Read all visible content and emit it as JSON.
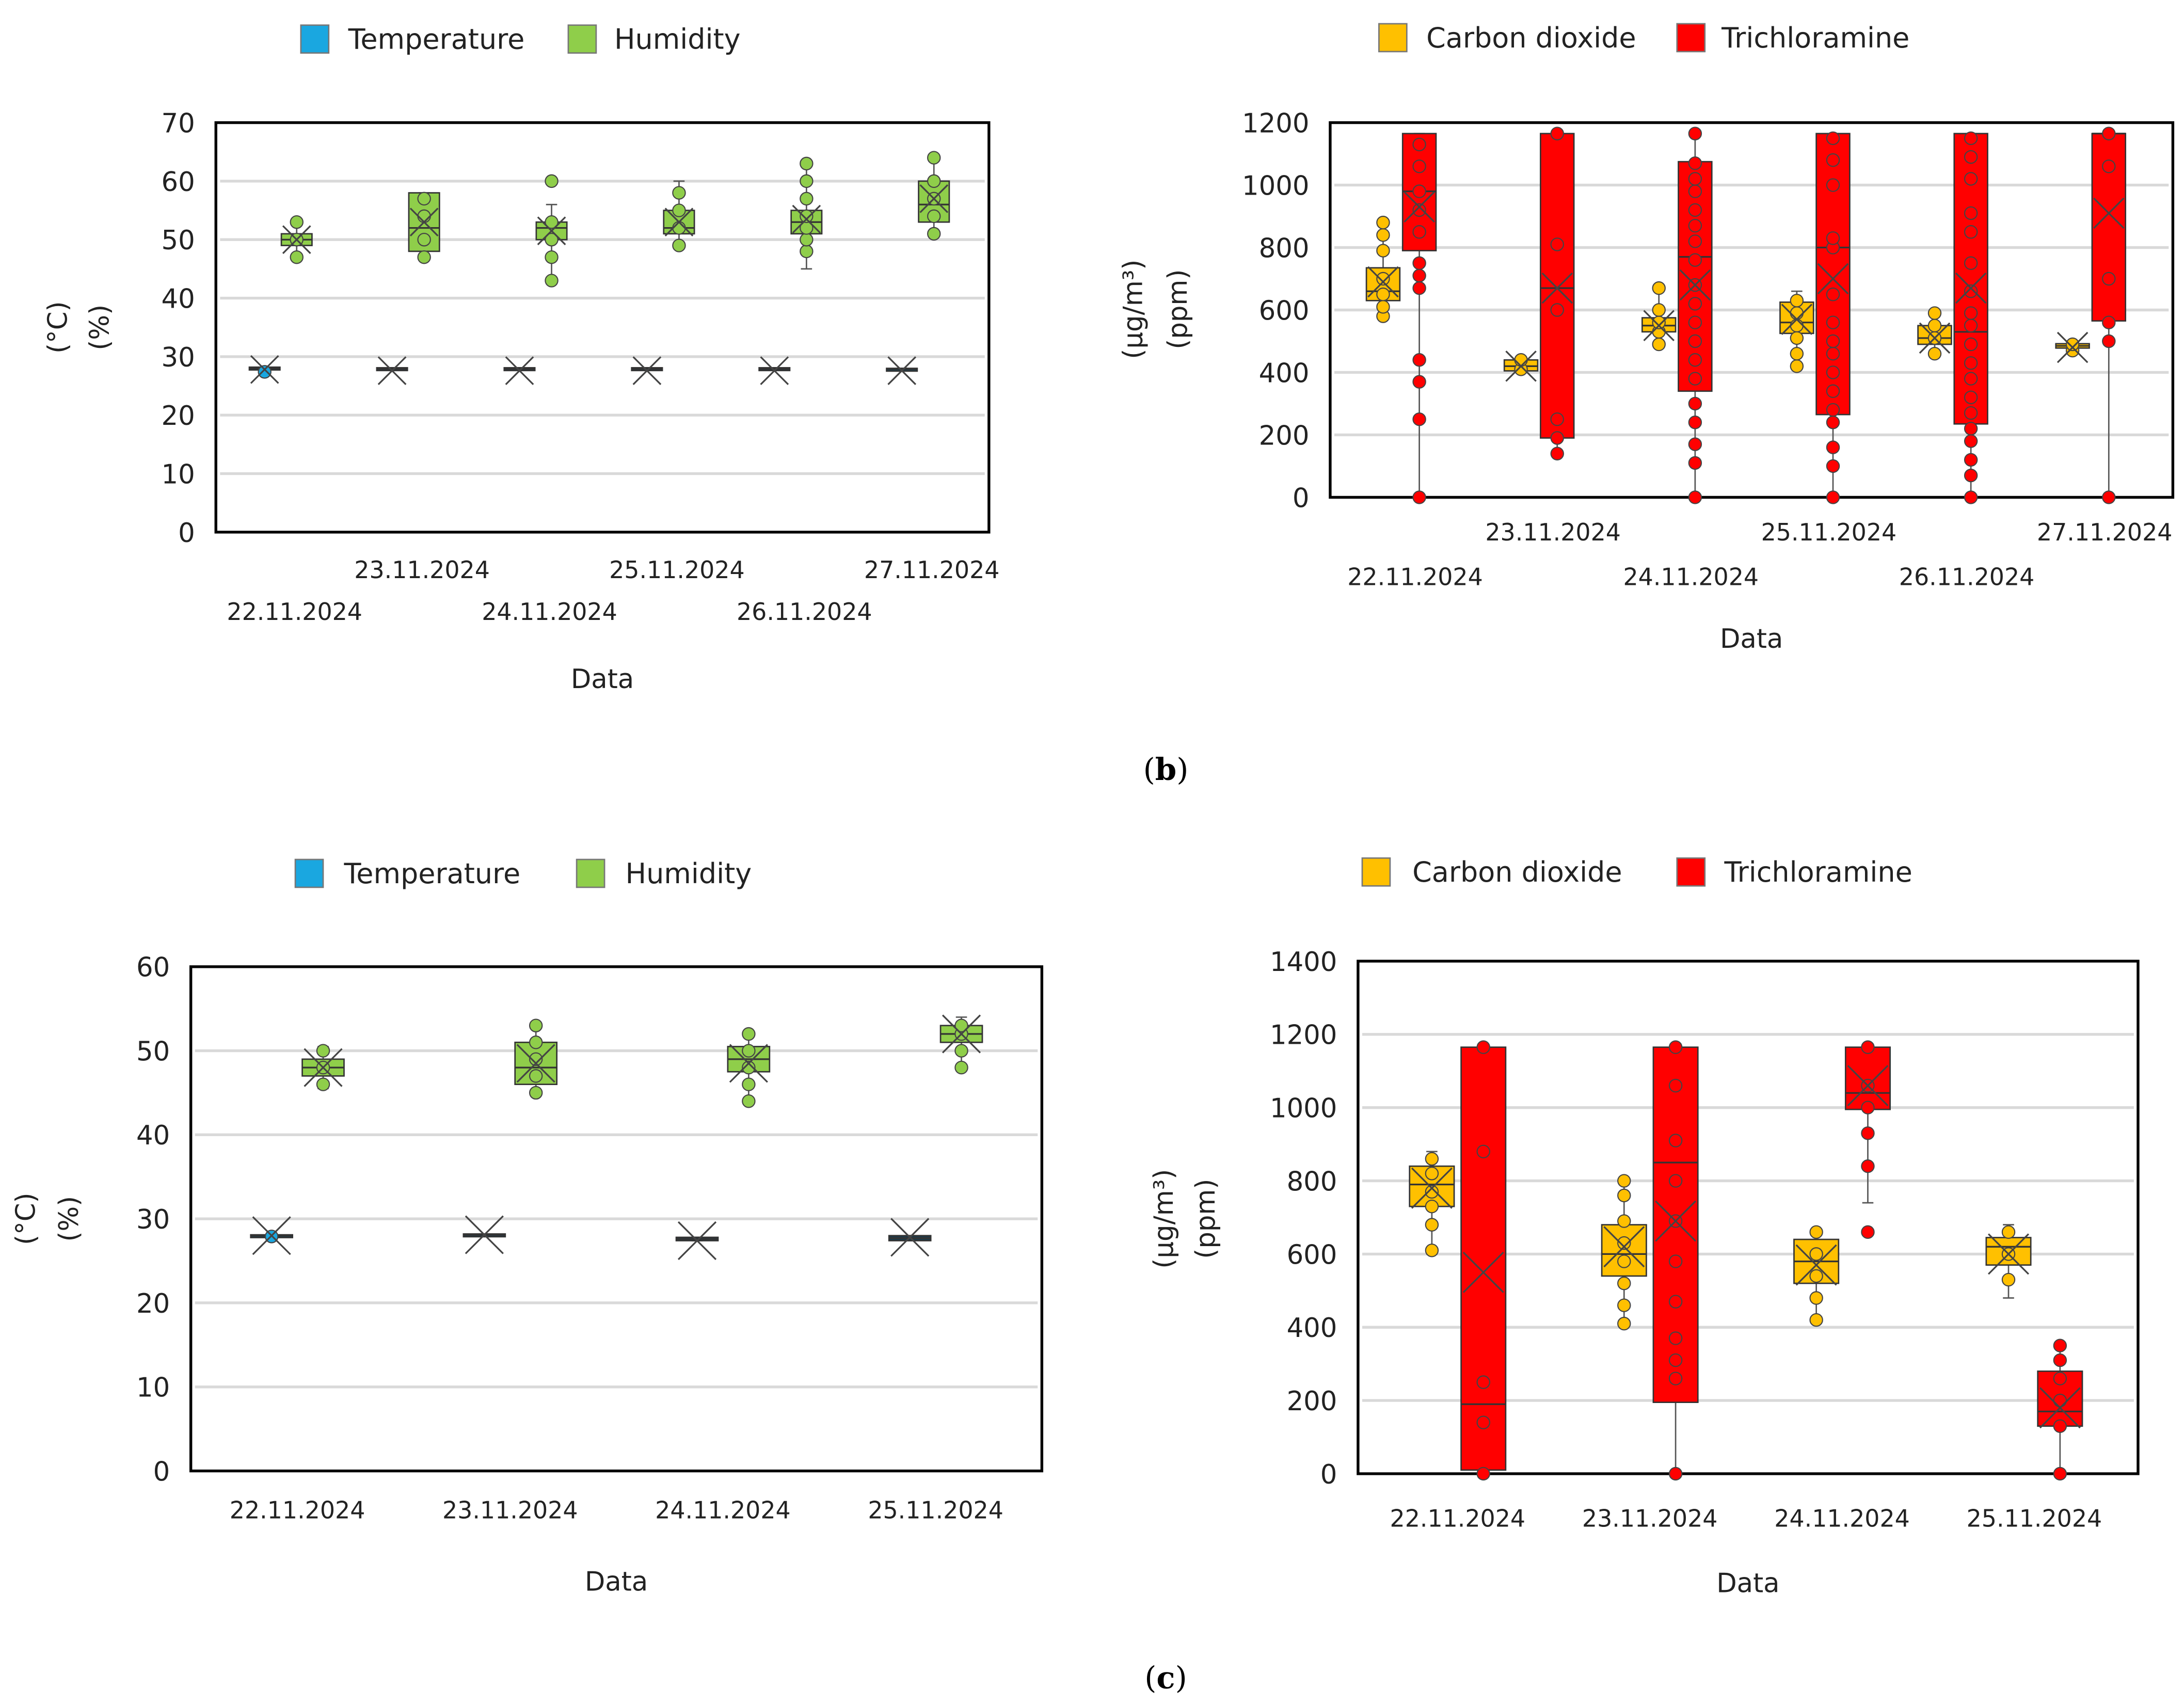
{
  "captions": {
    "b": "b",
    "c": "c"
  },
  "colors": {
    "temperature": "#1aa7e0",
    "humidity": "#8fce4a",
    "co2": "#ffc000",
    "tca": "#ff0000"
  },
  "chart_data": [
    {
      "type": "box",
      "panel": "b-left",
      "legend": [
        "Temperature",
        "Humidity"
      ],
      "legend_placement": "top-center",
      "ylabel": [
        "(°C)",
        "(%)"
      ],
      "xlabel": "Data",
      "ylim": [
        0,
        70
      ],
      "yticks": [
        "0",
        "10",
        "20",
        "30",
        "40",
        "50",
        "60",
        "70"
      ],
      "categories": [
        "22.11.2024",
        "23.11.2024",
        "24.11.2024",
        "25.11.2024",
        "26.11.2024",
        "27.11.2024"
      ],
      "series": [
        {
          "name": "Temperature",
          "boxes": [
            {
              "q1": 27.8,
              "median": 28,
              "q3": 28.2,
              "min": 27.8,
              "max": 28.2,
              "mean": 27.8,
              "points": [
                27.4
              ]
            },
            {
              "q1": 27.7,
              "median": 27.9,
              "q3": 28.1,
              "min": 27.7,
              "max": 28.1,
              "mean": 27.6,
              "points": []
            },
            {
              "q1": 27.7,
              "median": 27.9,
              "q3": 28.1,
              "min": 27.7,
              "max": 28.1,
              "mean": 27.6,
              "points": []
            },
            {
              "q1": 27.7,
              "median": 27.9,
              "q3": 28.1,
              "min": 27.7,
              "max": 28.1,
              "mean": 27.6,
              "points": []
            },
            {
              "q1": 27.7,
              "median": 27.9,
              "q3": 28.1,
              "min": 27.7,
              "max": 28.1,
              "mean": 27.6,
              "points": []
            },
            {
              "q1": 27.8,
              "median": 27.9,
              "q3": 28,
              "min": 27.8,
              "max": 28,
              "mean": 27.6,
              "points": []
            }
          ]
        },
        {
          "name": "Humidity",
          "boxes": [
            {
              "q1": 49,
              "median": 50,
              "q3": 51,
              "min": 47,
              "max": 53,
              "mean": 50,
              "points": [
                47,
                50,
                53
              ]
            },
            {
              "q1": 48,
              "median": 52,
              "q3": 58,
              "min": 47,
              "max": 58,
              "mean": 53,
              "points": [
                47,
                50,
                54,
                57
              ]
            },
            {
              "q1": 50,
              "median": 52,
              "q3": 53,
              "min": 43,
              "max": 56,
              "mean": 51.5,
              "points": [
                43,
                47,
                50,
                53,
                60
              ]
            },
            {
              "q1": 51,
              "median": 52,
              "q3": 55,
              "min": 49,
              "max": 60,
              "mean": 53,
              "points": [
                49,
                52,
                55,
                58
              ]
            },
            {
              "q1": 51,
              "median": 53,
              "q3": 55,
              "min": 45,
              "max": 63,
              "mean": 53.5,
              "points": [
                48,
                50,
                52,
                54,
                57,
                60,
                63
              ]
            },
            {
              "q1": 53,
              "median": 56,
              "q3": 60,
              "min": 51,
              "max": 64,
              "mean": 57,
              "points": [
                51,
                54,
                57,
                60,
                64
              ]
            }
          ]
        }
      ]
    },
    {
      "type": "box",
      "panel": "b-right",
      "legend": [
        "Carbon dioxide",
        "Trichloramine"
      ],
      "legend_placement": "top-center",
      "ylabel": [
        "(µg/m³)",
        "(ppm)"
      ],
      "xlabel": "Data",
      "ylim": [
        0,
        1200
      ],
      "yticks": [
        "0",
        "200",
        "400",
        "600",
        "800",
        "1000",
        "1200"
      ],
      "categories": [
        "22.11.2024",
        "23.11.2024",
        "24.11.2024",
        "25.11.2024",
        "26.11.2024",
        "27.11.2024"
      ],
      "series": [
        {
          "name": "Carbon dioxide",
          "boxes": [
            {
              "q1": 630,
              "median": 660,
              "q3": 735,
              "min": 580,
              "max": 880,
              "mean": 690,
              "points": [
                580,
                610,
                650,
                700,
                790,
                840,
                880
              ]
            },
            {
              "q1": 405,
              "median": 420,
              "q3": 440,
              "min": 400,
              "max": 450,
              "mean": 420,
              "points": [
                410,
                440
              ]
            },
            {
              "q1": 530,
              "median": 550,
              "q3": 575,
              "min": 480,
              "max": 670,
              "mean": 550,
              "points": [
                490,
                530,
                560,
                600,
                670
              ]
            },
            {
              "q1": 525,
              "median": 560,
              "q3": 625,
              "min": 410,
              "max": 660,
              "mean": 570,
              "points": [
                420,
                460,
                510,
                550,
                590,
                630
              ]
            },
            {
              "q1": 490,
              "median": 510,
              "q3": 550,
              "min": 450,
              "max": 590,
              "mean": 510,
              "points": [
                460,
                510,
                550,
                590
              ]
            },
            {
              "q1": 478,
              "median": 485,
              "q3": 492,
              "min": 460,
              "max": 500,
              "mean": 480,
              "points": [
                470,
                490
              ]
            }
          ]
        },
        {
          "name": "Trichloramine",
          "boxes": [
            {
              "q1": 790,
              "median": 980,
              "q3": 1165,
              "min": 0,
              "max": 1165,
              "mean": 930,
              "points": [
                0,
                250,
                370,
                440,
                670,
                710,
                750,
                850,
                920,
                980,
                1060,
                1130
              ]
            },
            {
              "q1": 190,
              "median": 670,
              "q3": 1165,
              "min": 140,
              "max": 1165,
              "mean": 670,
              "points": [
                140,
                190,
                250,
                600,
                810,
                1165
              ]
            },
            {
              "q1": 340,
              "median": 770,
              "q3": 1075,
              "min": 0,
              "max": 1165,
              "mean": 680,
              "points": [
                0,
                110,
                170,
                240,
                300,
                380,
                440,
                500,
                560,
                620,
                680,
                760,
                820,
                870,
                920,
                980,
                1020,
                1070,
                1165
              ]
            },
            {
              "q1": 265,
              "median": 800,
              "q3": 1165,
              "min": 0,
              "max": 1165,
              "mean": 700,
              "points": [
                0,
                100,
                160,
                240,
                280,
                340,
                400,
                460,
                500,
                560,
                650,
                800,
                830,
                1000,
                1080,
                1150
              ]
            },
            {
              "q1": 235,
              "median": 530,
              "q3": 1165,
              "min": 0,
              "max": 1165,
              "mean": 670,
              "points": [
                0,
                70,
                120,
                180,
                220,
                270,
                320,
                380,
                430,
                490,
                550,
                590,
                660,
                750,
                850,
                910,
                1020,
                1090,
                1150
              ]
            },
            {
              "q1": 565,
              "median": 1165,
              "q3": 1165,
              "min": 0,
              "max": 1165,
              "mean": 910,
              "points": [
                0,
                500,
                560,
                700,
                1060,
                1165
              ]
            }
          ]
        }
      ]
    },
    {
      "type": "box",
      "panel": "c-left",
      "legend": [
        "Temperature",
        "Humidity"
      ],
      "legend_placement": "top-center",
      "ylabel": [
        "(°C)",
        "(%)"
      ],
      "xlabel": "Data",
      "ylim": [
        0,
        60
      ],
      "yticks": [
        "0",
        "10",
        "20",
        "30",
        "40",
        "50",
        "60"
      ],
      "categories": [
        "22.11.2024",
        "23.11.2024",
        "24.11.2024",
        "25.11.2024"
      ],
      "series": [
        {
          "name": "Temperature",
          "boxes": [
            {
              "q1": 27.9,
              "median": 28,
              "q3": 28.1,
              "min": 27.9,
              "max": 28.1,
              "mean": 28,
              "points": [
                27.9
              ]
            },
            {
              "q1": 28,
              "median": 28.1,
              "q3": 28.2,
              "min": 28,
              "max": 28.2,
              "mean": 28.1,
              "points": []
            },
            {
              "q1": 27.4,
              "median": 27.6,
              "q3": 27.8,
              "min": 27.4,
              "max": 27.8,
              "mean": 27.4,
              "points": []
            },
            {
              "q1": 27.4,
              "median": 27.7,
              "q3": 28,
              "min": 27.4,
              "max": 28,
              "mean": 27.8,
              "points": []
            }
          ]
        },
        {
          "name": "Humidity",
          "boxes": [
            {
              "q1": 47,
              "median": 48,
              "q3": 49,
              "min": 45.5,
              "max": 50.5,
              "mean": 48,
              "points": [
                46,
                48,
                50
              ]
            },
            {
              "q1": 46,
              "median": 48,
              "q3": 51,
              "min": 45,
              "max": 53,
              "mean": 48.5,
              "points": [
                45,
                47,
                49,
                51,
                53
              ]
            },
            {
              "q1": 47.5,
              "median": 49,
              "q3": 50.5,
              "min": 44,
              "max": 52,
              "mean": 48.5,
              "points": [
                44,
                46,
                48,
                50,
                52
              ]
            },
            {
              "q1": 51,
              "median": 52,
              "q3": 53,
              "min": 48,
              "max": 54,
              "mean": 52,
              "points": [
                48,
                50,
                52,
                53
              ]
            }
          ]
        }
      ]
    },
    {
      "type": "box",
      "panel": "c-right",
      "legend": [
        "Carbon dioxide",
        "Trichloramine"
      ],
      "legend_placement": "top-center",
      "ylabel": [
        "(µg/m³)",
        "(ppm)"
      ],
      "xlabel": "Data",
      "ylim": [
        0,
        1400
      ],
      "yticks": [
        "0",
        "200",
        "400",
        "600",
        "800",
        "1000",
        "1200",
        "1400"
      ],
      "categories": [
        "22.11.2024",
        "23.11.2024",
        "24.11.2024",
        "25.11.2024"
      ],
      "series": [
        {
          "name": "Carbon dioxide",
          "boxes": [
            {
              "q1": 730,
              "median": 790,
              "q3": 840,
              "min": 600,
              "max": 880,
              "mean": 780,
              "points": [
                610,
                680,
                730,
                770,
                820,
                860
              ]
            },
            {
              "q1": 540,
              "median": 600,
              "q3": 680,
              "min": 410,
              "max": 800,
              "mean": 620,
              "points": [
                410,
                460,
                520,
                580,
                630,
                690,
                760,
                800
              ]
            },
            {
              "q1": 520,
              "median": 580,
              "q3": 640,
              "min": 420,
              "max": 660,
              "mean": 570,
              "points": [
                420,
                480,
                540,
                600,
                660
              ]
            },
            {
              "q1": 570,
              "median": 620,
              "q3": 645,
              "min": 480,
              "max": 680,
              "mean": 600,
              "points": [
                530,
                600,
                660
              ]
            }
          ]
        },
        {
          "name": "Trichloramine",
          "boxes": [
            {
              "q1": 10,
              "median": 190,
              "q3": 1165,
              "min": 0,
              "max": 1165,
              "mean": 550,
              "points": [
                0,
                140,
                250,
                880,
                1165
              ]
            },
            {
              "q1": 195,
              "median": 850,
              "q3": 1165,
              "min": 0,
              "max": 1165,
              "mean": 690,
              "points": [
                0,
                260,
                310,
                370,
                470,
                580,
                690,
                800,
                910,
                1060,
                1165
              ]
            },
            {
              "q1": 995,
              "median": 1040,
              "q3": 1165,
              "min": 740,
              "max": 1165,
              "mean": 1060,
              "points": [
                660,
                840,
                930,
                1000,
                1060,
                1165
              ]
            },
            {
              "q1": 130,
              "median": 170,
              "q3": 280,
              "min": 0,
              "max": 350,
              "mean": 180,
              "points": [
                0,
                130,
                200,
                260,
                310,
                350
              ]
            }
          ]
        }
      ]
    }
  ]
}
